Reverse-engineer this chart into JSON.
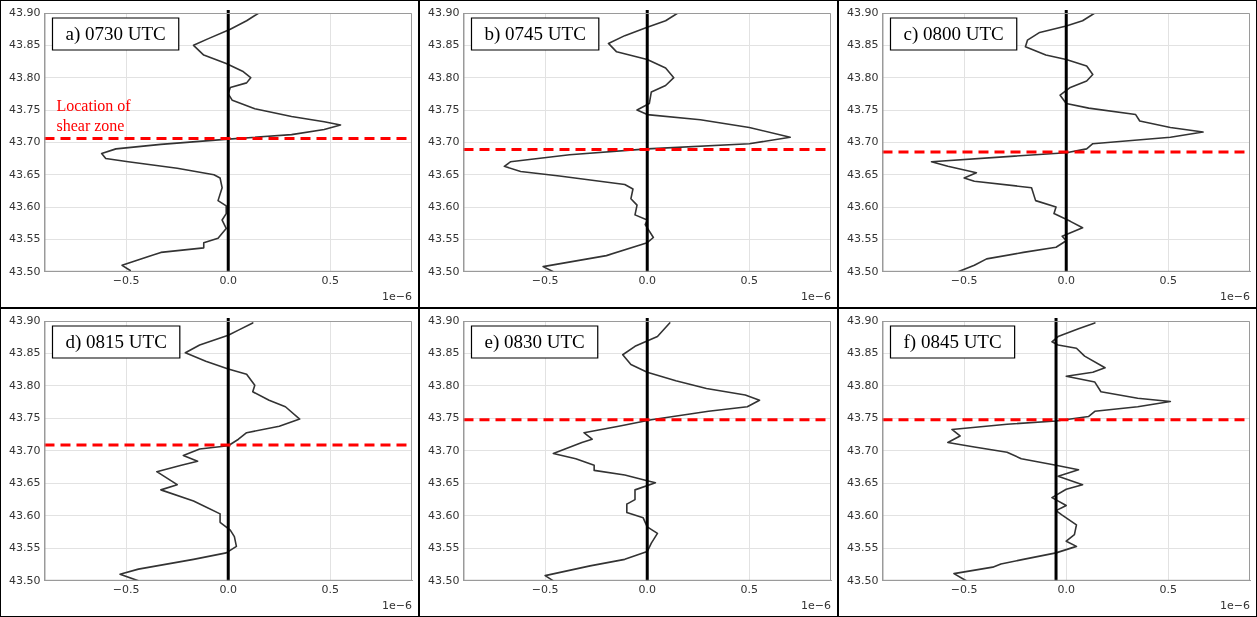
{
  "chart_data": [
    {
      "type": "line",
      "title": "a) 0730 UTC",
      "annotations": [
        "1e−6"
      ],
      "xlim": [
        -0.9,
        0.9
      ],
      "xticks": [
        {
          "value": -0.5,
          "label": "−0.5"
        },
        {
          "value": 0,
          "label": "0.0"
        },
        {
          "value": 0.5,
          "label": "0.5"
        }
      ],
      "ylim": [
        43.5,
        43.9
      ],
      "yticks": [
        {
          "value": 43.5,
          "label": "43.50"
        },
        {
          "value": 43.55,
          "label": "43.55"
        },
        {
          "value": 43.6,
          "label": "43.60"
        },
        {
          "value": 43.65,
          "label": "43.65"
        },
        {
          "value": 43.7,
          "label": "43.70"
        },
        {
          "value": 43.75,
          "label": "43.75"
        },
        {
          "value": 43.8,
          "label": "43.80"
        },
        {
          "value": 43.85,
          "label": "43.85"
        },
        {
          "value": 43.9,
          "label": "43.90"
        }
      ],
      "grid": true,
      "series": [
        {
          "color": "#333333",
          "x": [
            0.15,
            0.09,
            0.01,
            -0.1,
            -0.17,
            -0.12,
            -0.01,
            0.07,
            0.11,
            0.09,
            0.01,
            0.0,
            0.02,
            0.13,
            0.31,
            0.47,
            0.55,
            0.47,
            0.31,
            0.0,
            -0.33,
            -0.55,
            -0.62,
            -0.6,
            -0.49,
            -0.25,
            -0.07,
            -0.04,
            -0.03,
            -0.05,
            -0.01,
            -0.01,
            -0.03,
            -0.01,
            -0.05,
            -0.12,
            -0.12,
            -0.33,
            -0.52,
            -0.48
          ],
          "values": [
            43.9,
            43.888,
            43.875,
            43.86,
            43.85,
            43.835,
            43.822,
            43.81,
            43.8,
            43.792,
            43.785,
            43.775,
            43.765,
            43.752,
            43.74,
            43.732,
            43.727,
            43.72,
            43.712,
            43.705,
            43.697,
            43.69,
            43.683,
            43.675,
            43.67,
            43.66,
            43.65,
            43.645,
            43.63,
            43.61,
            43.602,
            43.59,
            43.58,
            43.567,
            43.552,
            43.545,
            43.537,
            43.53,
            43.51,
            43.502
          ]
        }
      ],
      "ref_lines": [
        {
          "axis": "x",
          "value": 0,
          "color": "#000000",
          "line_style": "solid"
        },
        {
          "axis": "y",
          "value": 43.706,
          "color": "#ff0000",
          "line_style": "dashed",
          "label": "Location of shear zone"
        }
      ]
    },
    {
      "type": "line",
      "title": "b) 0745 UTC",
      "annotations": [
        "1e−6"
      ],
      "xlim": [
        -0.9,
        0.9
      ],
      "xticks": [
        {
          "value": -0.5,
          "label": "−0.5"
        },
        {
          "value": 0,
          "label": "0.0"
        },
        {
          "value": 0.5,
          "label": "0.5"
        }
      ],
      "ylim": [
        43.5,
        43.9
      ],
      "yticks": [
        {
          "value": 43.5,
          "label": "43.50"
        },
        {
          "value": 43.55,
          "label": "43.55"
        },
        {
          "value": 43.6,
          "label": "43.60"
        },
        {
          "value": 43.65,
          "label": "43.65"
        },
        {
          "value": 43.7,
          "label": "43.70"
        },
        {
          "value": 43.75,
          "label": "43.75"
        },
        {
          "value": 43.8,
          "label": "43.80"
        },
        {
          "value": 43.85,
          "label": "43.85"
        },
        {
          "value": 43.9,
          "label": "43.90"
        }
      ],
      "grid": true,
      "series": [
        {
          "color": "#333333",
          "x": [
            0.15,
            0.09,
            0.0,
            -0.11,
            -0.19,
            -0.15,
            0.0,
            0.09,
            0.13,
            0.09,
            0.02,
            0.01,
            -0.05,
            0.0,
            0.26,
            0.5,
            0.7,
            0.5,
            0.0,
            -0.38,
            -0.67,
            -0.7,
            -0.62,
            -0.43,
            -0.11,
            -0.07,
            -0.08,
            -0.05,
            -0.06,
            0.0,
            -0.01,
            0.03,
            0.0,
            -0.2,
            -0.51,
            -0.46
          ],
          "values": [
            43.9,
            43.888,
            43.878,
            43.865,
            43.853,
            43.84,
            43.828,
            43.815,
            43.8,
            43.788,
            43.778,
            43.76,
            43.75,
            43.743,
            43.735,
            43.723,
            43.708,
            43.698,
            43.69,
            43.681,
            43.67,
            43.663,
            43.655,
            43.648,
            43.635,
            43.628,
            43.613,
            43.603,
            43.588,
            43.58,
            43.573,
            43.553,
            43.545,
            43.525,
            43.508,
            43.5
          ]
        }
      ],
      "ref_lines": [
        {
          "axis": "x",
          "value": 0,
          "color": "#000000",
          "line_style": "solid"
        },
        {
          "axis": "y",
          "value": 43.689,
          "color": "#ff0000",
          "line_style": "dashed"
        }
      ]
    },
    {
      "type": "line",
      "title": "c) 0800 UTC",
      "annotations": [
        "1e−6"
      ],
      "xlim": [
        -0.9,
        0.9
      ],
      "xticks": [
        {
          "value": -0.5,
          "label": "−0.5"
        },
        {
          "value": 0,
          "label": "0.0"
        },
        {
          "value": 0.5,
          "label": "0.5"
        }
      ],
      "ylim": [
        43.5,
        43.9
      ],
      "yticks": [
        {
          "value": 43.5,
          "label": "43.50"
        },
        {
          "value": 43.55,
          "label": "43.55"
        },
        {
          "value": 43.6,
          "label": "43.60"
        },
        {
          "value": 43.65,
          "label": "43.65"
        },
        {
          "value": 43.7,
          "label": "43.70"
        },
        {
          "value": 43.75,
          "label": "43.75"
        },
        {
          "value": 43.8,
          "label": "43.80"
        },
        {
          "value": 43.85,
          "label": "43.85"
        },
        {
          "value": 43.9,
          "label": "43.90"
        }
      ],
      "grid": true,
      "series": [
        {
          "color": "#333333",
          "x": [
            0.14,
            0.08,
            0.0,
            -0.13,
            -0.19,
            -0.2,
            -0.1,
            0.0,
            0.1,
            0.13,
            0.1,
            0.02,
            -0.03,
            0.0,
            0.11,
            0.34,
            0.36,
            0.51,
            0.67,
            0.51,
            0.13,
            0.1,
            0.0,
            -0.29,
            -0.66,
            -0.58,
            -0.44,
            -0.5,
            -0.45,
            -0.17,
            -0.15,
            -0.05,
            -0.06,
            0.02,
            0.08,
            -0.02,
            0.0,
            -0.05,
            -0.21,
            -0.39,
            -0.45,
            -0.53
          ],
          "values": [
            43.9,
            43.888,
            43.88,
            43.87,
            43.858,
            43.848,
            43.835,
            43.828,
            43.818,
            43.805,
            43.795,
            43.785,
            43.773,
            43.76,
            43.753,
            43.743,
            43.733,
            43.723,
            43.716,
            43.708,
            43.698,
            43.69,
            43.684,
            43.678,
            43.67,
            43.663,
            43.653,
            43.645,
            43.64,
            43.63,
            43.61,
            43.6,
            43.59,
            43.578,
            43.568,
            43.555,
            43.548,
            43.538,
            43.53,
            43.52,
            43.51,
            43.5
          ]
        }
      ],
      "ref_lines": [
        {
          "axis": "x",
          "value": 0,
          "color": "#000000",
          "line_style": "solid"
        },
        {
          "axis": "y",
          "value": 43.685,
          "color": "#ff0000",
          "line_style": "dashed"
        }
      ]
    },
    {
      "type": "line",
      "title": "d) 0815 UTC",
      "annotations": [
        "1e−6"
      ],
      "xlim": [
        -0.9,
        0.9
      ],
      "xticks": [
        {
          "value": -0.5,
          "label": "−0.5"
        },
        {
          "value": 0,
          "label": "0.0"
        },
        {
          "value": 0.5,
          "label": "0.5"
        }
      ],
      "ylim": [
        43.5,
        43.9
      ],
      "yticks": [
        {
          "value": 43.5,
          "label": "43.50"
        },
        {
          "value": 43.55,
          "label": "43.55"
        },
        {
          "value": 43.6,
          "label": "43.60"
        },
        {
          "value": 43.65,
          "label": "43.65"
        },
        {
          "value": 43.7,
          "label": "43.70"
        },
        {
          "value": 43.75,
          "label": "43.75"
        },
        {
          "value": 43.8,
          "label": "43.80"
        },
        {
          "value": 43.85,
          "label": "43.85"
        },
        {
          "value": 43.9,
          "label": "43.90"
        }
      ],
      "grid": true,
      "series": [
        {
          "color": "#333333",
          "x": [
            0.12,
            0.05,
            0.0,
            -0.14,
            -0.21,
            -0.11,
            0.0,
            0.09,
            0.13,
            0.12,
            0.2,
            0.28,
            0.35,
            0.25,
            0.09,
            0.05,
            0.0,
            -0.14,
            -0.22,
            -0.15,
            -0.23,
            -0.35,
            -0.25,
            -0.33,
            -0.17,
            -0.04,
            -0.04,
            0.01,
            0.03,
            0.04,
            -0.01,
            -0.17,
            -0.44,
            -0.53,
            -0.44
          ],
          "values": [
            43.897,
            43.886,
            43.878,
            43.863,
            43.851,
            43.838,
            43.826,
            43.818,
            43.801,
            43.791,
            43.778,
            43.768,
            43.749,
            43.738,
            43.728,
            43.718,
            43.708,
            43.703,
            43.693,
            43.684,
            43.678,
            43.668,
            43.648,
            43.64,
            43.623,
            43.603,
            43.59,
            43.578,
            43.568,
            43.553,
            43.543,
            43.533,
            43.518,
            43.51,
            43.5
          ]
        }
      ],
      "ref_lines": [
        {
          "axis": "x",
          "value": 0,
          "color": "#000000",
          "line_style": "solid"
        },
        {
          "axis": "y",
          "value": 43.709,
          "color": "#ff0000",
          "line_style": "dashed"
        }
      ]
    },
    {
      "type": "line",
      "title": "e) 0830 UTC",
      "annotations": [
        "1e−6"
      ],
      "xlim": [
        -0.9,
        0.9
      ],
      "xticks": [
        {
          "value": -0.5,
          "label": "−0.5"
        },
        {
          "value": 0,
          "label": "0.0"
        },
        {
          "value": 0.5,
          "label": "0.5"
        }
      ],
      "ylim": [
        43.5,
        43.9
      ],
      "yticks": [
        {
          "value": 43.5,
          "label": "43.50"
        },
        {
          "value": 43.55,
          "label": "43.55"
        },
        {
          "value": 43.6,
          "label": "43.60"
        },
        {
          "value": 43.65,
          "label": "43.65"
        },
        {
          "value": 43.7,
          "label": "43.70"
        },
        {
          "value": 43.75,
          "label": "43.75"
        },
        {
          "value": 43.8,
          "label": "43.80"
        },
        {
          "value": 43.85,
          "label": "43.85"
        },
        {
          "value": 43.9,
          "label": "43.90"
        }
      ],
      "grid": true,
      "series": [
        {
          "color": "#333333",
          "x": [
            0.11,
            0.05,
            -0.06,
            -0.12,
            -0.08,
            0.0,
            0.14,
            0.29,
            0.48,
            0.55,
            0.49,
            0.3,
            0.02,
            -0.14,
            -0.31,
            -0.27,
            -0.32,
            -0.46,
            -0.35,
            -0.26,
            -0.26,
            -0.11,
            0.0,
            0.04,
            -0.06,
            -0.06,
            -0.1,
            -0.1,
            -0.02,
            0.0,
            0.05,
            0.02,
            0.0,
            -0.11,
            -0.28,
            -0.5,
            -0.46
          ],
          "values": [
            43.897,
            43.876,
            43.861,
            43.848,
            43.833,
            43.821,
            43.808,
            43.796,
            43.786,
            43.778,
            43.768,
            43.761,
            43.748,
            43.738,
            43.728,
            43.718,
            43.713,
            43.696,
            43.688,
            43.678,
            43.67,
            43.663,
            43.654,
            43.651,
            43.64,
            43.625,
            43.618,
            43.605,
            43.597,
            43.583,
            43.573,
            43.558,
            43.545,
            43.533,
            43.523,
            43.508,
            43.5
          ]
        }
      ],
      "ref_lines": [
        {
          "axis": "x",
          "value": 0,
          "color": "#000000",
          "line_style": "solid"
        },
        {
          "axis": "y",
          "value": 43.748,
          "color": "#ff0000",
          "line_style": "dashed"
        }
      ]
    },
    {
      "type": "line",
      "title": "f) 0845 UTC",
      "annotations": [
        "1e−6"
      ],
      "xlim": [
        -0.9,
        0.9
      ],
      "xticks": [
        {
          "value": -0.5,
          "label": "−0.5"
        },
        {
          "value": 0,
          "label": "0.0"
        },
        {
          "value": 0.5,
          "label": "0.5"
        }
      ],
      "ylim": [
        43.5,
        43.9
      ],
      "yticks": [
        {
          "value": 43.5,
          "label": "43.50"
        },
        {
          "value": 43.55,
          "label": "43.55"
        },
        {
          "value": 43.6,
          "label": "43.60"
        },
        {
          "value": 43.65,
          "label": "43.65"
        },
        {
          "value": 43.7,
          "label": "43.70"
        },
        {
          "value": 43.75,
          "label": "43.75"
        },
        {
          "value": 43.8,
          "label": "43.80"
        },
        {
          "value": 43.85,
          "label": "43.85"
        },
        {
          "value": 43.9,
          "label": "43.90"
        }
      ],
      "grid": true,
      "series": [
        {
          "color": "#333333",
          "x": [
            0.14,
            0.06,
            -0.04,
            -0.07,
            -0.04,
            0.05,
            0.09,
            0.19,
            0.13,
            0.0,
            0.14,
            0.17,
            0.35,
            0.51,
            0.35,
            0.14,
            0.11,
            -0.05,
            -0.29,
            -0.56,
            -0.52,
            -0.58,
            -0.45,
            -0.29,
            -0.22,
            -0.05,
            0.06,
            -0.04,
            0.08,
            0.0,
            -0.07,
            0.0,
            -0.05,
            -0.02,
            0.05,
            0.04,
            0.0,
            0.05,
            -0.05,
            -0.21,
            -0.32,
            -0.36,
            -0.55,
            -0.49
          ],
          "values": [
            43.897,
            43.888,
            43.876,
            43.868,
            43.863,
            43.858,
            43.846,
            43.828,
            43.821,
            43.815,
            43.806,
            43.791,
            43.781,
            43.776,
            43.768,
            43.761,
            43.753,
            43.746,
            43.741,
            43.733,
            43.723,
            43.713,
            43.706,
            43.698,
            43.688,
            43.678,
            43.671,
            43.661,
            43.648,
            43.641,
            43.628,
            43.616,
            43.608,
            43.601,
            43.586,
            43.571,
            43.561,
            43.553,
            43.543,
            43.533,
            43.526,
            43.521,
            43.511,
            43.5
          ]
        }
      ],
      "ref_lines": [
        {
          "axis": "x",
          "value": -0.05,
          "color": "#000000",
          "line_style": "solid"
        },
        {
          "axis": "y",
          "value": 43.748,
          "color": "#ff0000",
          "line_style": "dashed"
        }
      ]
    }
  ]
}
